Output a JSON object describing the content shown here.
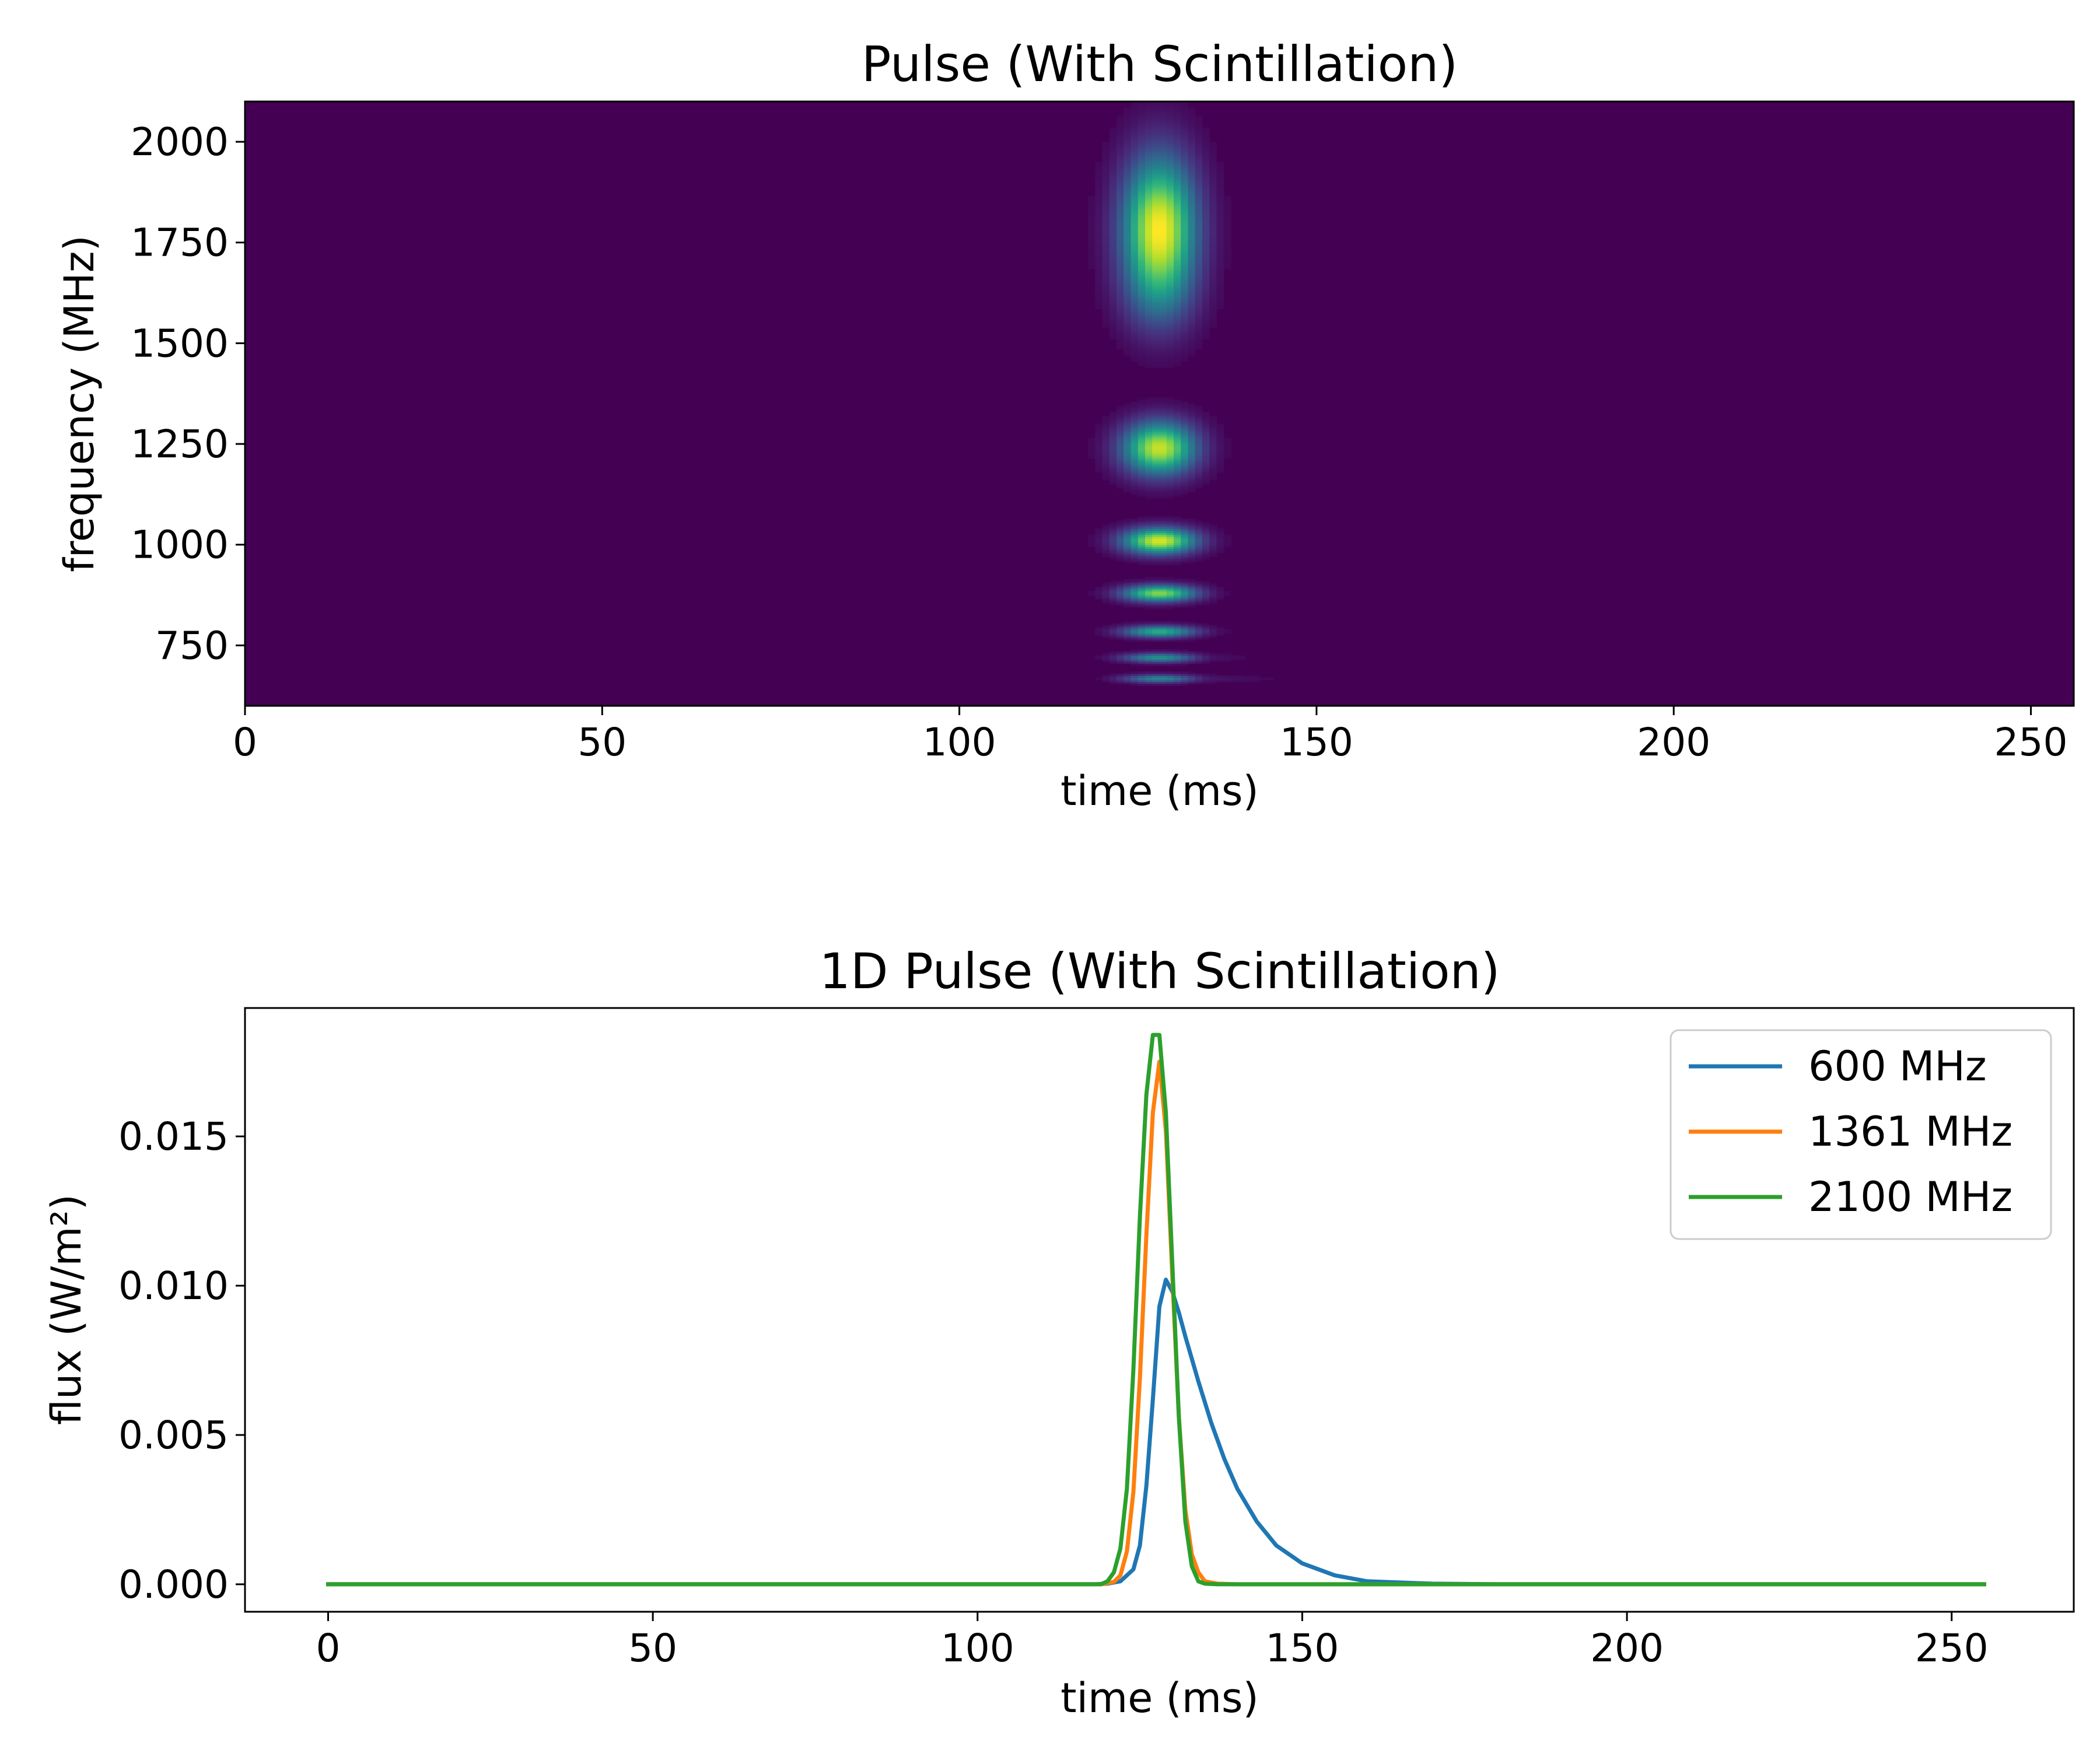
{
  "chart_data": [
    {
      "type": "heatmap",
      "title": "Pulse (With Scintillation)",
      "xlabel": "time (ms)",
      "ylabel": "frequency (MHz)",
      "xlim": [
        0,
        256
      ],
      "ylim": [
        600,
        2100
      ],
      "xticks": [
        0,
        50,
        100,
        150,
        200,
        250
      ],
      "yticks": [
        750,
        1000,
        1250,
        1500,
        1750,
        2000
      ],
      "colormap": "viridis",
      "background": "#440154",
      "pulse_time_ms": 128,
      "pulse_width_ms": 3.5,
      "scattering_tail_ms_at_600MHz": 12,
      "scintillation_blobs": [
        {
          "freq_mhz": 1785,
          "freq_halfwidth_mhz": 120,
          "intensity": 1.0
        },
        {
          "freq_mhz": 1620,
          "freq_halfwidth_mhz": 70,
          "intensity": 0.15
        },
        {
          "freq_mhz": 1240,
          "freq_halfwidth_mhz": 45,
          "intensity": 0.92
        },
        {
          "freq_mhz": 1010,
          "freq_halfwidth_mhz": 22,
          "intensity": 0.95
        },
        {
          "freq_mhz": 880,
          "freq_halfwidth_mhz": 14,
          "intensity": 0.82
        },
        {
          "freq_mhz": 785,
          "freq_halfwidth_mhz": 10,
          "intensity": 0.62
        },
        {
          "freq_mhz": 720,
          "freq_halfwidth_mhz": 8,
          "intensity": 0.5
        },
        {
          "freq_mhz": 668,
          "freq_halfwidth_mhz": 7,
          "intensity": 0.45
        }
      ]
    },
    {
      "type": "line",
      "title": "1D Pulse (With Scintillation)",
      "xlabel": "time (ms)",
      "ylabel": "flux (W/m²)",
      "xlim": [
        -12.8,
        268.8
      ],
      "ylim": [
        -0.00092,
        0.0193
      ],
      "xticks": [
        0,
        50,
        100,
        150,
        200,
        250
      ],
      "yticks": [
        0.0,
        0.005,
        0.01,
        0.015
      ],
      "ytick_labels": [
        "0.000",
        "0.005",
        "0.010",
        "0.015"
      ],
      "legend_position": "top-right",
      "x_range": [
        0,
        255
      ],
      "series": [
        {
          "name": "600 MHz",
          "color": "#1f77b4",
          "points": [
            [
              0,
              0
            ],
            [
              118,
              0
            ],
            [
              120,
              2e-05
            ],
            [
              122,
              0.0001
            ],
            [
              124,
              0.0005
            ],
            [
              125,
              0.0013
            ],
            [
              126,
              0.0033
            ],
            [
              127,
              0.0062
            ],
            [
              128,
              0.0093
            ],
            [
              129,
              0.0102
            ],
            [
              130,
              0.0098
            ],
            [
              131,
              0.0091
            ],
            [
              132,
              0.0083
            ],
            [
              134,
              0.0068
            ],
            [
              136,
              0.0054
            ],
            [
              138,
              0.0042
            ],
            [
              140,
              0.0032
            ],
            [
              143,
              0.0021
            ],
            [
              146,
              0.0013
            ],
            [
              150,
              0.0007
            ],
            [
              155,
              0.0003
            ],
            [
              160,
              0.0001
            ],
            [
              170,
              2e-05
            ],
            [
              180,
              0
            ],
            [
              255,
              0
            ]
          ]
        },
        {
          "name": "1361 MHz",
          "color": "#ff7f0e",
          "points": [
            [
              0,
              0
            ],
            [
              119,
              0
            ],
            [
              121,
              8e-05
            ],
            [
              122,
              0.0003
            ],
            [
              123,
              0.0011
            ],
            [
              124,
              0.0031
            ],
            [
              125,
              0.0069
            ],
            [
              126,
              0.0117
            ],
            [
              127,
              0.0158
            ],
            [
              128,
              0.0175
            ],
            [
              129,
              0.0152
            ],
            [
              130,
              0.0103
            ],
            [
              131,
              0.0056
            ],
            [
              132,
              0.0025
            ],
            [
              133,
              0.001
            ],
            [
              134,
              0.0004
            ],
            [
              135,
              0.0001
            ],
            [
              137,
              2e-05
            ],
            [
              140,
              0
            ],
            [
              255,
              0
            ]
          ]
        },
        {
          "name": "2100 MHz",
          "color": "#2ca02c",
          "points": [
            [
              0,
              0
            ],
            [
              119,
              0
            ],
            [
              120,
              0.0001
            ],
            [
              121,
              0.0004
            ],
            [
              122,
              0.0012
            ],
            [
              123,
              0.0032
            ],
            [
              124,
              0.0072
            ],
            [
              125,
              0.0123
            ],
            [
              126,
              0.0164
            ],
            [
              127,
              0.0184
            ],
            [
              128,
              0.0184
            ],
            [
              129,
              0.0158
            ],
            [
              130,
              0.0107
            ],
            [
              131,
              0.0056
            ],
            [
              132,
              0.0021
            ],
            [
              133,
              0.0006
            ],
            [
              134,
              0.0001
            ],
            [
              135,
              2e-05
            ],
            [
              137,
              0
            ],
            [
              255,
              0
            ]
          ]
        }
      ]
    }
  ]
}
